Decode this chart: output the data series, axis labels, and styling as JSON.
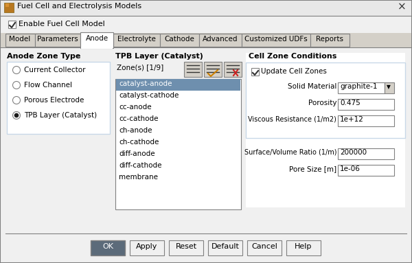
{
  "title": "Fuel Cell and Electrolysis Models",
  "enable_label": "Enable Fuel Cell Model",
  "tabs": [
    "Model",
    "Parameters",
    "Anode",
    "Electrolyte",
    "Cathode",
    "Advanced",
    "Customized UDFs",
    "Reports"
  ],
  "active_tab_idx": 2,
  "anode_zone_type_label": "Anode Zone Type",
  "radio_options": [
    "Current Collector",
    "Flow Channel",
    "Porous Electrode",
    "TPB Layer (Catalyst)"
  ],
  "selected_radio": 3,
  "tpb_label": "TPB Layer (Catalyst)",
  "zone_label": "Zone(s) [1/9]",
  "zones": [
    "catalyst-anode",
    "catalyst-cathode",
    "cc-anode",
    "cc-cathode",
    "ch-anode",
    "ch-cathode",
    "diff-anode",
    "diff-cathode",
    "membrane"
  ],
  "selected_zone": 0,
  "cell_zone_label": "Cell Zone Conditions",
  "update_cell_zones_label": "Update Cell Zones",
  "solid_material_label": "Solid Material",
  "solid_material_value": "graphite-1",
  "porosity_label": "Porosity",
  "porosity_value": "0.475",
  "viscous_resistance_label": "Viscous Resistance (1/m2)",
  "viscous_resistance_value": "1e+12",
  "surface_volume_label": "Surface/Volume Ratio (1/m)",
  "surface_volume_value": "200000",
  "pore_size_label": "Pore Size [m]",
  "pore_size_value": "1e-06",
  "buttons": [
    "OK",
    "Apply",
    "Reset",
    "Default",
    "Cancel",
    "Help"
  ],
  "bg_color": "#f0f0f0",
  "white": "#ffffff",
  "title_bar_bg": "#e8e8e8",
  "tab_active_bg": "#f0f0f0",
  "tab_inactive_bg": "#d4d0c8",
  "listbox_selected_bg": "#6e8fae",
  "listbox_selected_fg": "#ffffff",
  "button_ok_bg": "#5c6b7a",
  "button_ok_fg": "#ffffff",
  "border_dark": "#808080",
  "border_light": "#c8c8c8",
  "text_color": "#000000",
  "blue_border": "#c8d8e8",
  "inner_box_bg": "#f4f8fc"
}
